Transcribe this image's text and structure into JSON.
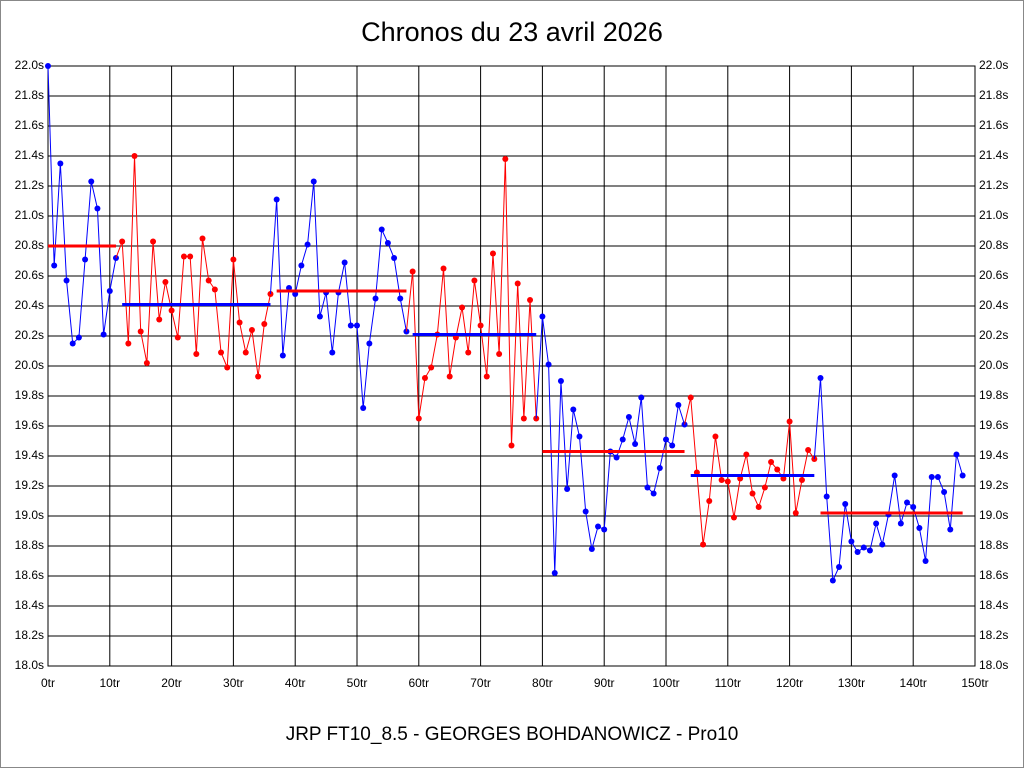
{
  "chart_data": {
    "type": "line",
    "title": "Chronos du 23 avril 2026",
    "x_label": "JRP FT10_8.5 - GEORGES BOHDANOWICZ - Pro10",
    "xlim": [
      0,
      150
    ],
    "ylim": [
      18.0,
      22.0
    ],
    "grid": true,
    "xticks": [
      {
        "value": 0,
        "label": "0tr"
      },
      {
        "value": 10,
        "label": "10tr"
      },
      {
        "value": 20,
        "label": "20tr"
      },
      {
        "value": 30,
        "label": "30tr"
      },
      {
        "value": 40,
        "label": "40tr"
      },
      {
        "value": 50,
        "label": "50tr"
      },
      {
        "value": 60,
        "label": "60tr"
      },
      {
        "value": 70,
        "label": "70tr"
      },
      {
        "value": 80,
        "label": "80tr"
      },
      {
        "value": 90,
        "label": "90tr"
      },
      {
        "value": 100,
        "label": "100tr"
      },
      {
        "value": 110,
        "label": "110tr"
      },
      {
        "value": 120,
        "label": "120tr"
      },
      {
        "value": 130,
        "label": "130tr"
      },
      {
        "value": 140,
        "label": "140tr"
      },
      {
        "value": 150,
        "label": "150tr"
      }
    ],
    "yticks": [
      {
        "value": 18.0,
        "label": "18.0s"
      },
      {
        "value": 18.2,
        "label": "18.2s"
      },
      {
        "value": 18.4,
        "label": "18.4s"
      },
      {
        "value": 18.6,
        "label": "18.6s"
      },
      {
        "value": 18.8,
        "label": "18.8s"
      },
      {
        "value": 19.0,
        "label": "19.0s"
      },
      {
        "value": 19.2,
        "label": "19.2s"
      },
      {
        "value": 19.4,
        "label": "19.4s"
      },
      {
        "value": 19.6,
        "label": "19.6s"
      },
      {
        "value": 19.8,
        "label": "19.8s"
      },
      {
        "value": 20.0,
        "label": "20.0s"
      },
      {
        "value": 20.2,
        "label": "20.2s"
      },
      {
        "value": 20.4,
        "label": "20.4s"
      },
      {
        "value": 20.6,
        "label": "20.6s"
      },
      {
        "value": 20.8,
        "label": "20.8s"
      },
      {
        "value": 21.0,
        "label": "21.0s"
      },
      {
        "value": 21.2,
        "label": "21.2s"
      },
      {
        "value": 21.4,
        "label": "21.4s"
      },
      {
        "value": 21.6,
        "label": "21.6s"
      },
      {
        "value": 21.8,
        "label": "21.8s"
      },
      {
        "value": 22.0,
        "label": "22.0s"
      }
    ],
    "segments": [
      {
        "color": "#0000ff",
        "mean_color": "#ff0000",
        "mean": 20.8,
        "x": [
          0,
          1,
          2,
          3,
          4,
          5,
          6,
          7,
          8,
          9,
          10,
          11
        ],
        "values": [
          22.0,
          20.67,
          21.35,
          20.57,
          20.15,
          20.19,
          20.71,
          21.23,
          21.05,
          20.21,
          20.5,
          20.72
        ]
      },
      {
        "color": "#ff0000",
        "mean_color": "#0000ff",
        "mean": 20.41,
        "x": [
          12,
          13,
          14,
          15,
          16,
          17,
          18,
          19,
          20,
          21,
          22,
          23,
          24,
          25,
          26,
          27,
          28,
          29,
          30,
          31,
          32,
          33,
          34,
          35,
          36
        ],
        "values": [
          20.83,
          20.15,
          21.4,
          20.23,
          20.02,
          20.83,
          20.31,
          20.56,
          20.37,
          20.19,
          20.73,
          20.73,
          20.08,
          20.85,
          20.57,
          20.51,
          20.09,
          19.99,
          20.71,
          20.29,
          20.09,
          20.24,
          19.93,
          20.28,
          20.48
        ]
      },
      {
        "color": "#0000ff",
        "mean_color": "#ff0000",
        "mean": 20.5,
        "x": [
          37,
          38,
          39,
          40,
          41,
          42,
          43,
          44,
          45,
          46,
          47,
          48,
          49,
          50,
          51,
          52,
          53,
          54,
          55,
          56,
          57,
          58
        ],
        "values": [
          21.11,
          20.07,
          20.52,
          20.48,
          20.67,
          20.81,
          21.23,
          20.33,
          20.49,
          20.09,
          20.49,
          20.69,
          20.27,
          20.27,
          19.72,
          20.15,
          20.45,
          20.91,
          20.82,
          20.72,
          20.45,
          20.23
        ]
      },
      {
        "color": "#ff0000",
        "mean_color": "#0000ff",
        "mean": 20.21,
        "x": [
          59,
          60,
          61,
          62,
          63,
          64,
          65,
          66,
          67,
          68,
          69,
          70,
          71,
          72,
          73,
          74,
          75,
          76,
          77,
          78,
          79
        ],
        "values": [
          20.63,
          19.65,
          19.92,
          19.99,
          20.21,
          20.65,
          19.93,
          20.19,
          20.39,
          20.09,
          20.57,
          20.27,
          19.93,
          20.75,
          20.08,
          21.38,
          19.47,
          20.55,
          19.65,
          20.44,
          19.65
        ]
      },
      {
        "color": "#0000ff",
        "mean_color": "#ff0000",
        "mean": 19.43,
        "x": [
          80,
          81,
          82,
          83,
          84,
          85,
          86,
          87,
          88,
          89,
          90,
          91,
          92,
          93,
          94,
          95,
          96,
          97,
          98,
          99,
          100,
          101,
          102,
          103
        ],
        "values": [
          20.33,
          20.01,
          18.62,
          19.9,
          19.18,
          19.71,
          19.53,
          19.03,
          18.78,
          18.93,
          18.91,
          19.43,
          19.39,
          19.51,
          19.66,
          19.48,
          19.79,
          19.19,
          19.15,
          19.32,
          19.51,
          19.47,
          19.74,
          19.61
        ]
      },
      {
        "color": "#ff0000",
        "mean_color": "#0000ff",
        "mean": 19.27,
        "x": [
          104,
          105,
          106,
          107,
          108,
          109,
          110,
          111,
          112,
          113,
          114,
          115,
          116,
          117,
          118,
          119,
          120,
          121,
          122,
          123,
          124
        ],
        "values": [
          19.79,
          19.29,
          18.81,
          19.1,
          19.53,
          19.24,
          19.23,
          18.99,
          19.25,
          19.41,
          19.15,
          19.06,
          19.19,
          19.36,
          19.31,
          19.25,
          19.63,
          19.02,
          19.24,
          19.44,
          19.38
        ]
      },
      {
        "color": "#0000ff",
        "mean_color": "#ff0000",
        "mean": 19.02,
        "x": [
          125,
          126,
          127,
          128,
          129,
          130,
          131,
          132,
          133,
          134,
          135,
          136,
          137,
          138,
          139,
          140,
          141,
          142,
          143,
          144,
          145,
          146,
          147,
          148
        ],
        "values": [
          19.92,
          19.13,
          18.57,
          18.66,
          19.08,
          18.83,
          18.76,
          18.79,
          18.77,
          18.95,
          18.81,
          19.01,
          19.27,
          18.95,
          19.09,
          19.06,
          18.92,
          18.7,
          19.26,
          19.26,
          19.16,
          18.91,
          19.41,
          19.27
        ]
      }
    ]
  }
}
